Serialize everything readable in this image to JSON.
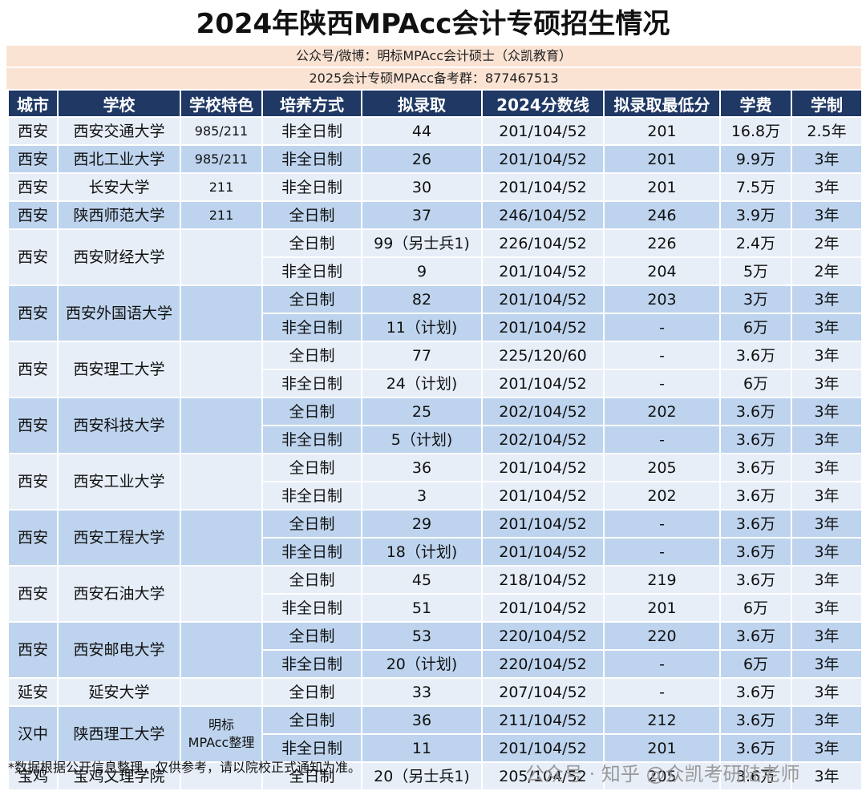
{
  "header": {
    "title": "2024年陕西MPAcc会计专硕招生情况",
    "sub1": "公众号/微博：明标MPAcc会计硕士（众凯教育）",
    "sub2": "2025会计专硕MPAcc备考群：877467513"
  },
  "table": {
    "columns": [
      "城市",
      "学校",
      "学校特色",
      "培养方式",
      "拟录取",
      "2024分数线",
      "拟录取最低分",
      "学费",
      "学制"
    ],
    "schools": [
      {
        "city": "西安",
        "name": "西安交通大学",
        "feature": "985/211",
        "rows": [
          [
            "非全日制",
            "44",
            "201/104/52",
            "201",
            "16.8万",
            "2.5年"
          ]
        ]
      },
      {
        "city": "西安",
        "name": "西北工业大学",
        "feature": "985/211",
        "rows": [
          [
            "非全日制",
            "26",
            "201/104/52",
            "201",
            "9.9万",
            "3年"
          ]
        ]
      },
      {
        "city": "西安",
        "name": "长安大学",
        "feature": "211",
        "rows": [
          [
            "非全日制",
            "30",
            "201/104/52",
            "201",
            "7.5万",
            "3年"
          ]
        ]
      },
      {
        "city": "西安",
        "name": "陕西师范大学",
        "feature": "211",
        "rows": [
          [
            "全日制",
            "37",
            "246/104/52",
            "246",
            "3.9万",
            "3年"
          ]
        ]
      },
      {
        "city": "西安",
        "name": "西安财经大学",
        "rows": [
          [
            "全日制",
            "99（另士兵1)",
            "226/104/52",
            "226",
            "2.4万",
            "2年"
          ],
          [
            "非全日制",
            "9",
            "201/104/52",
            "204",
            "5万",
            "2年"
          ]
        ]
      },
      {
        "city": "西安",
        "name": "西安外国语大学",
        "rows": [
          [
            "全日制",
            "82",
            "201/104/52",
            "203",
            "3万",
            "3年"
          ],
          [
            "非全日制",
            "11（计划)",
            "201/104/52",
            "-",
            "6万",
            "3年"
          ]
        ]
      },
      {
        "city": "西安",
        "name": "西安理工大学",
        "rows": [
          [
            "全日制",
            "77",
            "225/120/60",
            "-",
            "3.6万",
            "3年"
          ],
          [
            "非全日制",
            "24（计划)",
            "201/104/52",
            "-",
            "6万",
            "3年"
          ]
        ]
      },
      {
        "city": "西安",
        "name": "西安科技大学",
        "rows": [
          [
            "全日制",
            "25",
            "202/104/52",
            "202",
            "3.6万",
            "3年"
          ],
          [
            "非全日制",
            "5（计划)",
            "202/104/52",
            "-",
            "3.6万",
            "3年"
          ]
        ]
      },
      {
        "city": "西安",
        "name": "西安工业大学",
        "rows": [
          [
            "全日制",
            "36",
            "201/104/52",
            "205",
            "3.6万",
            "3年"
          ],
          [
            "非全日制",
            "3",
            "201/104/52",
            "202",
            "3.6万",
            "3年"
          ]
        ]
      },
      {
        "city": "西安",
        "name": "西安工程大学",
        "rows": [
          [
            "全日制",
            "29",
            "201/104/52",
            "-",
            "3.6万",
            "3年"
          ],
          [
            "非全日制",
            "18（计划)",
            "201/104/52",
            "-",
            "3.6万",
            "3年"
          ]
        ]
      },
      {
        "city": "西安",
        "name": "西安石油大学",
        "rows": [
          [
            "全日制",
            "45",
            "218/104/52",
            "219",
            "3.6万",
            "3年"
          ],
          [
            "非全日制",
            "51",
            "201/104/52",
            "201",
            "6万",
            "3年"
          ]
        ]
      },
      {
        "city": "西安",
        "name": "西安邮电大学",
        "rows": [
          [
            "全日制",
            "53",
            "220/104/52",
            "220",
            "3.6万",
            "3年"
          ],
          [
            "非全日制",
            "20（计划)",
            "220/104/52",
            "-",
            "6万",
            "3年"
          ]
        ]
      },
      {
        "city": "延安",
        "name": "延安大学",
        "rows": [
          [
            "全日制",
            "33",
            "207/104/52",
            "-",
            "3.6万",
            "3年"
          ]
        ]
      },
      {
        "city": "汉中",
        "name": "陕西理工大学",
        "feature": "明标\nMPAcc整理",
        "rows": [
          [
            "全日制",
            "36",
            "211/104/52",
            "212",
            "3.6万",
            "3年"
          ],
          [
            "非全日制",
            "11",
            "201/104/52",
            "201",
            "3.6万",
            "3年"
          ]
        ]
      },
      {
        "city": "宝鸡",
        "name": "宝鸡文理学院",
        "rows": [
          [
            "全日制",
            "20（另士兵1)",
            "205/104/52",
            "205",
            "3.6万",
            "3年"
          ]
        ]
      }
    ]
  },
  "footer": {
    "note": "*数据根据公开信息整理，仅供参考，请以院校正式通知为准。",
    "watermark": "公众号 · 知乎 @众凯考研陆老师"
  }
}
